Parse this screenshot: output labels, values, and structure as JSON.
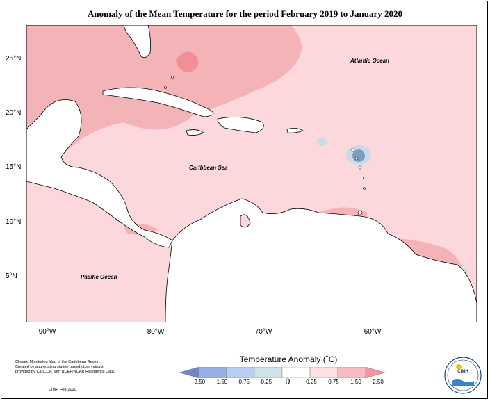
{
  "title": "Anomaly of the Mean Temperature for the period February 2019 to January 2020",
  "map": {
    "labels": {
      "atlantic": "Atlantic Ocean",
      "caribbean": "Caribbean Sea",
      "pacific": "Pacific Ocean"
    },
    "lat_labels": [
      "25°N",
      "20°N",
      "15°N",
      "10°N",
      "5°N"
    ],
    "lon_labels": [
      "90°W",
      "80°W",
      "70°W",
      "60°W"
    ],
    "colors": {
      "ocean_low": "#fcd7db",
      "ocean_mid": "#f4b3b7",
      "hot": "#f08f96",
      "cold": "#7c9cc4",
      "cold_light": "#c8dbe6",
      "land": "#ffffff"
    }
  },
  "legend": {
    "title": "Temperature Anomaly (˚C)",
    "ticks": [
      "-2.50",
      "-1.50",
      "-0.75",
      "-0.25",
      "0",
      "0.25",
      "0.75",
      "1.50",
      "2.50"
    ],
    "colors": [
      "#6f86c0",
      "#96afe6",
      "#b9cff2",
      "#cde2ea",
      "#ffffff",
      "#fde0e3",
      "#f7bcc1",
      "#f3959c"
    ]
  },
  "credit": {
    "line1": "Climate Monitoring Map of the Caribbean Region.",
    "line2": "Created by aggregating station based observations,",
    "line3": "provided by CariCOF, with NCEP/NCAR Reanalysis Data.",
    "date": "CIMH Feb-2020"
  },
  "logo": {
    "text": "CIMH"
  }
}
